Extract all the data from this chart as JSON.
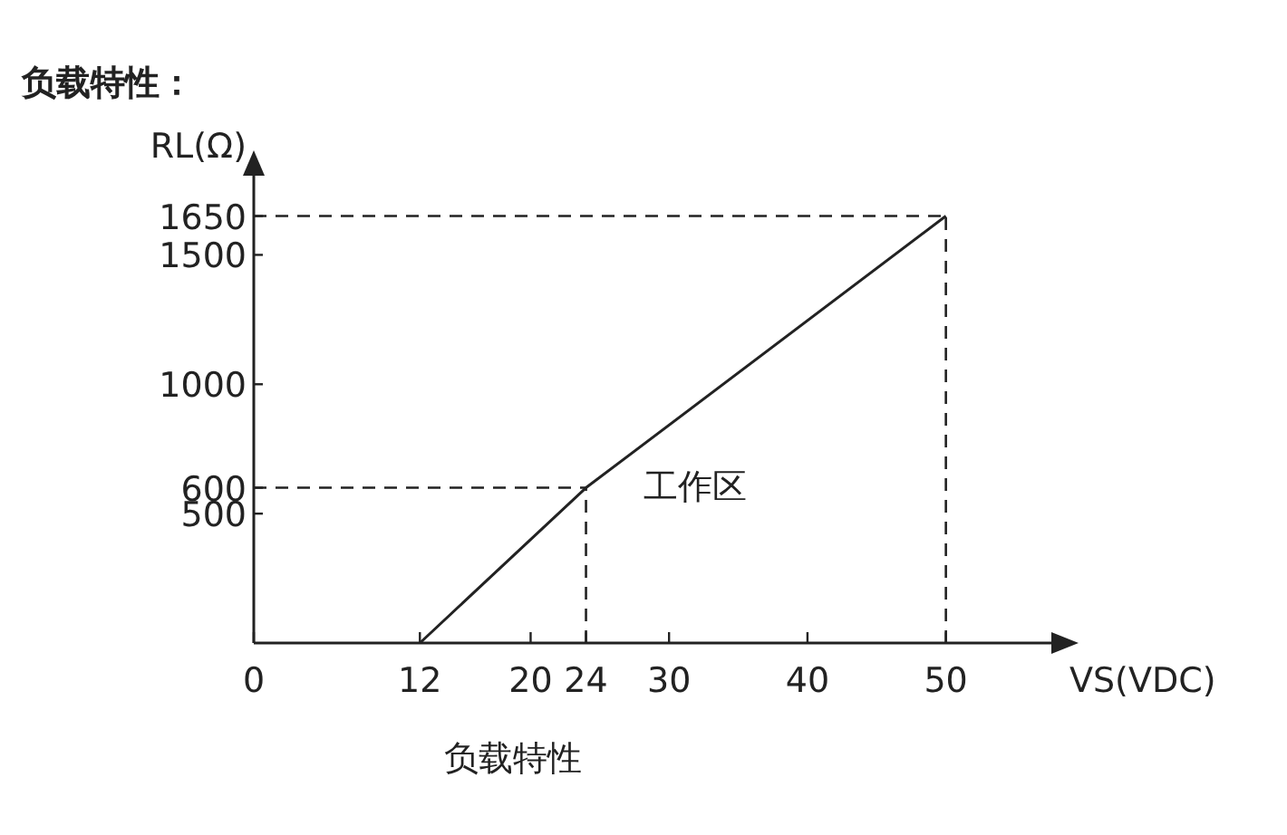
{
  "chart_data": {
    "type": "line",
    "title": "负载特性：",
    "xlabel": "VS(VDC)",
    "ylabel": "RL(Ω)",
    "annotations": [
      "工作区",
      "负载特性"
    ],
    "series": [
      {
        "color": "#222222",
        "x": [
          12,
          24,
          50
        ],
        "values": [
          0,
          600,
          1650
        ]
      }
    ],
    "xlim": [
      0,
      55
    ],
    "ylim": [
      0,
      1750
    ],
    "xticks": [
      0,
      12,
      20,
      24,
      30,
      40,
      50
    ],
    "yticks": [
      500,
      600,
      1000,
      1500,
      1650
    ],
    "ref_lines": [
      {
        "axis": "y",
        "value": 600,
        "line_style": "dashed",
        "color": "#222222"
      },
      {
        "axis": "x",
        "value": 24,
        "line_style": "dashed",
        "color": "#222222"
      },
      {
        "axis": "y",
        "value": 1650,
        "line_style": "dashed",
        "color": "#222222"
      },
      {
        "axis": "x",
        "value": 50,
        "line_style": "dashed",
        "color": "#222222"
      }
    ],
    "grid": false,
    "marker": "none",
    "line_style": "solid"
  }
}
